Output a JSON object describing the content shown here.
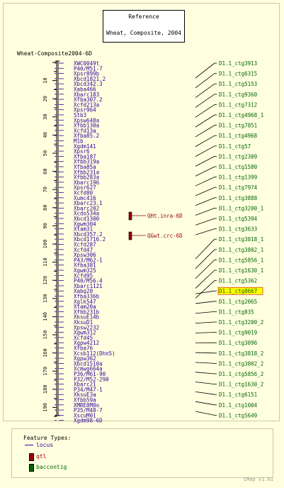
{
  "reference": {
    "heading": "Reference",
    "title": "Wheat, Composite, 2004"
  },
  "map": {
    "name": "Wheat-Composite2004-6D"
  },
  "axis_ticks": [
    "10",
    "20",
    "30",
    "40",
    "50",
    "60",
    "70",
    "80",
    "90",
    "100",
    "110",
    "120",
    "130",
    "140",
    "150",
    "160",
    "170",
    "180",
    "190"
  ],
  "loci": [
    "XWC0049t",
    "P40/M51-7",
    "Xpsr899b",
    "Xbcd1821.2",
    "Xbcd342.3",
    "Xaba466",
    "Xbarc183",
    "Xfba307.2",
    "Xcfd213a",
    "Xpsr964",
    "Stb3",
    "Xpsw648a",
    "Xfbb130a",
    "Xcfd13a",
    "Xfba85.2",
    "M1b",
    "Xgdm141",
    "Xpsr6",
    "Xfba187",
    "Xfbb319a",
    "Xfba85a",
    "Xfbb231a",
    "Xfbb283a",
    "Xbarc196",
    "Xpsr627",
    "Xcfd80",
    "Xumc416",
    "Xbarc23.1",
    "Xbarc202",
    "Xcdo534a",
    "Xbcd1300",
    "Xgwm304",
    "Xtam31",
    "Xbcd357.2",
    "Xbcd1716.2",
    "Xcfd287",
    "Xcfd47",
    "Xpsw306",
    "P43/M62-1",
    "Xfba381",
    "Xgwm325",
    "Xcfd95",
    "P40/M56-4",
    "Xbarc1121",
    "Xabg20",
    "Xfba336b",
    "Xglk547",
    "Xtam20a",
    "Xfbb231b",
    "XksuE14b",
    "XksuD1",
    "Xpsw2232",
    "Xgwm312",
    "Xcfd45",
    "Xgpw4212",
    "Xfba76",
    "Xcsb112(Dhn5)",
    "Xgpw362",
    "Xbcd1510a",
    "Xcmwg664a",
    "P36/M61-90",
    "P32/M52-290",
    "Xbarc21",
    "P34/M47-1",
    "XksuE3a",
    "Xfbb59a",
    "XMRE0M0o",
    "P35/M48-7",
    "XscuM01",
    "Xgdm98-6D"
  ],
  "qtls": [
    "QHt.inra-6D",
    "QGwt.crc-6D"
  ],
  "contigs": [
    "D1.1_ctg3913",
    "D1.1_ctg6315",
    "D1.1_ctg5153",
    "D1.1_ctg9360",
    "D1.1_ctg7312",
    "D1.1_ctg4968_1",
    "D1.1_ctg7851",
    "D1.1_ctg4968",
    "D1.1_ctg57",
    "D1.1_ctg2309",
    "D1.1_ctg1580",
    "D1.1_ctg1399",
    "D1.1_ctg7974",
    "D1.1_ctg3888",
    "D1.1_ctg3200_1",
    "D1.1_ctg5394",
    "D1.1_ctg3633",
    "D1.1_ctg3818_1",
    "D1.1_ctg3802_1",
    "D1.1_ctg5856_1",
    "D1.1_ctg1630_1",
    "D1.1_ctg5362",
    "D1.1_ctg8667",
    "D1.1_ctg2065",
    "D1.1_ctg835",
    "D1.1_ctg3200_2",
    "D1.1_ctg9019",
    "D1.1_ctg3096",
    "D1.1_ctg3818_2",
    "D1.1_ctg3802_2",
    "D1.1_ctg5856_2",
    "D1.1_ctg1630_2",
    "D1.1_ctg6151",
    "D1.1_ctg1004",
    "D1.1_ctg5649"
  ],
  "highlighted_contig": "D1.1_ctg8667",
  "legend": {
    "title": "Feature Types:",
    "items": [
      "locus",
      "qtl",
      "baccontig"
    ]
  },
  "footer": "CMap v1.01",
  "colors": {
    "locus": "#330099",
    "qtl": "#990000",
    "contig": "#006600",
    "highlight": "#FFFF00",
    "axis": "#000000",
    "background": "#FFFFE0"
  }
}
